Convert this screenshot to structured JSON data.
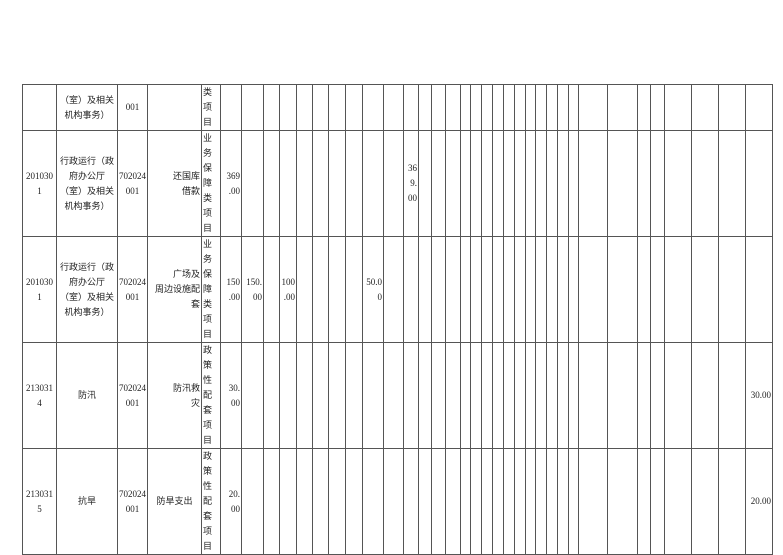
{
  "table": {
    "rows": [
      [
        "",
        "（室）及相关\n机构事务）",
        "001",
        "",
        "类项\n目",
        "",
        "",
        "",
        "",
        "",
        "",
        "",
        "",
        "",
        "",
        "",
        "",
        "",
        "",
        "",
        "",
        "",
        "",
        "",
        "",
        "",
        "",
        "",
        "",
        "",
        "",
        "",
        "",
        "",
        "",
        "",
        "",
        ""
      ],
      [
        "201030\n1",
        "行政运行（政\n府办公厅\n（室）及相关\n机构事务）",
        "702024\n001",
        "还国库\n借款",
        "业务\n保障\n类项\n目",
        "369\n.00",
        "",
        "",
        "",
        "",
        "",
        "",
        "",
        "",
        "",
        "36\n9.\n00",
        "",
        "",
        "",
        "",
        "",
        "",
        "",
        "",
        "",
        "",
        "",
        "",
        "",
        "",
        "",
        "",
        "",
        "",
        "",
        "",
        "",
        ""
      ],
      [
        "201030\n1",
        "行政运行（政\n府办公厅\n（室）及相关\n机构事务）",
        "702024\n001",
        "广场及\n周边设施配\n套",
        "业务\n保障\n类项\n目",
        "150\n.00",
        "150.\n00",
        "",
        "100\n.00",
        "",
        "",
        "",
        "",
        "50.0\n0",
        "",
        "",
        "",
        "",
        "",
        "",
        "",
        "",
        "",
        "",
        "",
        "",
        "",
        "",
        "",
        "",
        "",
        "",
        "",
        "",
        "",
        "",
        "",
        ""
      ],
      [
        "213031\n4",
        "防汛",
        "702024\n001",
        "防汛救\n灾",
        "政策\n性配\n套项\n目",
        "30.\n00",
        "",
        "",
        "",
        "",
        "",
        "",
        "",
        "",
        "",
        "",
        "",
        "",
        "",
        "",
        "",
        "",
        "",
        "",
        "",
        "",
        "",
        "",
        "",
        "",
        "",
        "",
        "",
        "",
        "",
        "",
        "",
        "30.00"
      ],
      [
        "213031\n5",
        "抗旱",
        "702024\n001",
        "防旱支出",
        "政策\n性配\n套项\n目",
        "20.\n00",
        "",
        "",
        "",
        "",
        "",
        "",
        "",
        "",
        "",
        "",
        "",
        "",
        "",
        "",
        "",
        "",
        "",
        "",
        "",
        "",
        "",
        "",
        "",
        "",
        "",
        "",
        "",
        "",
        "",
        "",
        "",
        "20.00"
      ]
    ]
  }
}
